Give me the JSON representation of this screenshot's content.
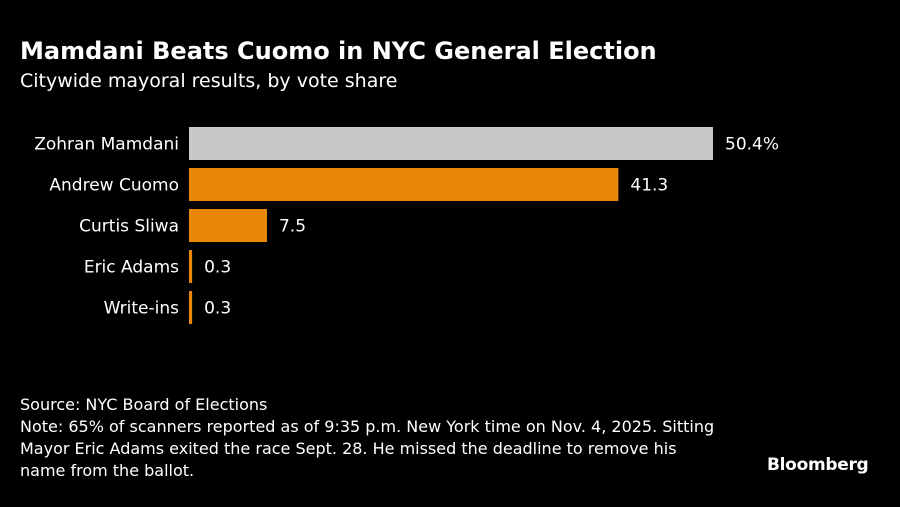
{
  "header": {
    "title": "Mamdani Beats Cuomo in NYC General Election",
    "subtitle": "Citywide mayoral results, by vote share"
  },
  "chart_data": {
    "type": "bar",
    "orientation": "horizontal",
    "categories": [
      "Zohran Mamdani",
      "Andrew Cuomo",
      "Curtis Sliwa",
      "Eric Adams",
      "Write-ins"
    ],
    "values": [
      50.4,
      41.3,
      7.5,
      0.3,
      0.3
    ],
    "value_labels": [
      "50.4%",
      "41.3",
      "7.5",
      "0.3",
      "0.3"
    ],
    "bar_colors": [
      "#c8c8c8",
      "#e8870a",
      "#e8870a",
      "#e8870a",
      "#e8870a"
    ],
    "xlim": [
      0,
      50.4
    ],
    "grid": false,
    "legend": "none"
  },
  "footer": {
    "source": "Source: NYC Board of Elections",
    "note": "Note: 65% of scanners reported as of 9:35 p.m. New York time on Nov. 4, 2025. Sitting Mayor Eric Adams exited the race Sept. 28. He missed the deadline to remove his name from the ballot.",
    "brand": "Bloomberg"
  }
}
